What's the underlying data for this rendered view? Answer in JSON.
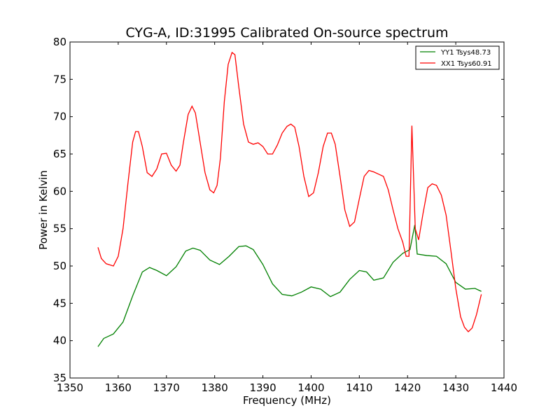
{
  "chart_data": {
    "type": "line",
    "title": "CYG-A, ID:31995 Calibrated On-source spectrum",
    "xlabel": "Frequency (MHz)",
    "ylabel": "Power in Kelvin",
    "xlim": [
      1350,
      1440
    ],
    "ylim": [
      35,
      80
    ],
    "xticks": [
      1350,
      1360,
      1370,
      1380,
      1390,
      1400,
      1410,
      1420,
      1430,
      1440
    ],
    "yticks": [
      35,
      40,
      45,
      50,
      55,
      60,
      65,
      70,
      75,
      80
    ],
    "grid": false,
    "legend_position": "top-right",
    "series": [
      {
        "name": "YY1 Tsys48.73",
        "color": "#008000",
        "x": [
          1355.8,
          1357,
          1359,
          1361,
          1363,
          1365,
          1366.5,
          1368,
          1370,
          1372,
          1374,
          1375.5,
          1377,
          1379,
          1381,
          1383,
          1385,
          1386.5,
          1388,
          1390,
          1392,
          1394,
          1396,
          1398,
          1400,
          1402,
          1404,
          1406,
          1408,
          1410,
          1411.5,
          1413,
          1415,
          1417,
          1419,
          1420.5,
          1421.5,
          1422,
          1424,
          1426,
          1428,
          1430,
          1432,
          1434,
          1435.3
        ],
        "y": [
          39.2,
          40.3,
          40.9,
          42.5,
          46.0,
          49.2,
          49.8,
          49.4,
          48.7,
          49.9,
          52.0,
          52.4,
          52.1,
          50.8,
          50.2,
          51.3,
          52.6,
          52.7,
          52.2,
          50.2,
          47.6,
          46.2,
          46.0,
          46.5,
          47.2,
          46.9,
          45.9,
          46.5,
          48.2,
          49.4,
          49.2,
          48.1,
          48.4,
          50.5,
          51.7,
          52.2,
          55.5,
          51.6,
          51.4,
          51.3,
          50.3,
          47.8,
          46.9,
          47.0,
          46.6
        ]
      },
      {
        "name": "XX1 Tsys60.91",
        "color": "#ff0000",
        "x": [
          1355.8,
          1356.5,
          1357.5,
          1359,
          1360,
          1361,
          1362,
          1363,
          1363.6,
          1364.2,
          1365,
          1366,
          1367,
          1368,
          1369,
          1370,
          1371,
          1372,
          1372.8,
          1373.5,
          1374.5,
          1375.3,
          1376,
          1377,
          1378,
          1379,
          1379.8,
          1380.5,
          1381.2,
          1382,
          1382.8,
          1383.6,
          1384.2,
          1385,
          1386,
          1387,
          1388,
          1389,
          1390,
          1391,
          1392,
          1393,
          1394,
          1395,
          1395.8,
          1396.6,
          1397.5,
          1398.5,
          1399.5,
          1400.5,
          1401.5,
          1402.5,
          1403.4,
          1404.2,
          1405,
          1406,
          1407,
          1408,
          1409,
          1410,
          1411,
          1412,
          1413,
          1414,
          1415,
          1416,
          1417,
          1418,
          1419,
          1419.7,
          1420.3,
          1420.9,
          1421.6,
          1422.3,
          1423.2,
          1424.2,
          1425.1,
          1426,
          1427,
          1428,
          1429,
          1430,
          1431,
          1431.8,
          1432.6,
          1433.4,
          1434.3,
          1435.3
        ],
        "y": [
          52.5,
          51.0,
          50.3,
          50.0,
          51.3,
          55.0,
          61.0,
          66.6,
          68.0,
          68.0,
          66.0,
          62.5,
          62.0,
          63.0,
          65.0,
          65.1,
          63.5,
          62.7,
          63.5,
          66.5,
          70.3,
          71.4,
          70.5,
          66.5,
          62.5,
          60.2,
          59.8,
          60.8,
          64.5,
          72.0,
          77.0,
          78.6,
          78.3,
          74.0,
          69.0,
          66.6,
          66.3,
          66.5,
          66.0,
          65.0,
          65.0,
          66.2,
          67.8,
          68.7,
          69.0,
          68.6,
          66.0,
          62.0,
          59.3,
          59.8,
          62.5,
          66.0,
          67.8,
          67.8,
          66.3,
          62.0,
          57.5,
          55.3,
          55.9,
          59.0,
          62.0,
          62.8,
          62.6,
          62.3,
          62.0,
          60.2,
          57.5,
          55.0,
          53.2,
          51.3,
          51.3,
          68.8,
          55.0,
          53.5,
          57.0,
          60.5,
          61.0,
          60.8,
          59.5,
          56.8,
          52.0,
          47.0,
          43.2,
          41.8,
          41.2,
          41.7,
          43.5,
          46.2
        ]
      }
    ]
  }
}
